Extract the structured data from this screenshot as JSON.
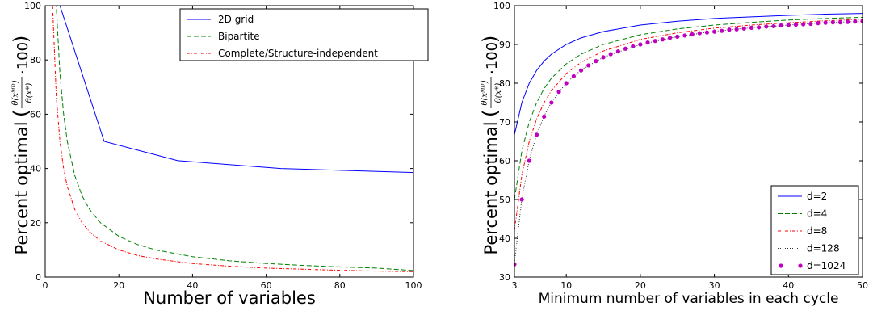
{
  "chart_data": [
    {
      "type": "line",
      "xlabel": "Number of variables",
      "ylabel": "Percent optimal",
      "ylabel_expr": {
        "num": "θ(x^{MD})",
        "den": "θ(x*)",
        "suffix": "·100"
      },
      "xlim": [
        0,
        100
      ],
      "ylim": [
        0,
        100
      ],
      "xticks": [
        0,
        20,
        40,
        60,
        80,
        100
      ],
      "yticks": [
        0,
        20,
        40,
        60,
        80,
        100
      ],
      "legend_position": "top-right",
      "series": [
        {
          "name": "2D grid",
          "color": "#0000ff",
          "dash": "solid",
          "x": [
            4,
            16,
            36,
            64,
            100
          ],
          "y": [
            100,
            50,
            42.9,
            40,
            38.5
          ]
        },
        {
          "name": "Bipartite",
          "color": "#008000",
          "dash": "dashed",
          "x": [
            2,
            3,
            4,
            5,
            6,
            8,
            10,
            12,
            15,
            20,
            25,
            30,
            40,
            50,
            60,
            70,
            80,
            90,
            100
          ],
          "y": [
            100,
            100,
            75,
            60,
            50,
            37.5,
            30,
            25,
            20,
            15,
            12,
            10,
            7.5,
            6,
            5,
            4.3,
            3.75,
            3.3,
            2.4
          ]
        },
        {
          "name": "Complete/Structure-independent",
          "color": "#ff0000",
          "dash": "dashdot",
          "x": [
            2,
            3,
            4,
            5,
            6,
            8,
            10,
            12,
            15,
            20,
            25,
            30,
            40,
            50,
            60,
            70,
            80,
            90,
            100
          ],
          "y": [
            100,
            66.7,
            50,
            40,
            33.3,
            25,
            20,
            16.7,
            13.3,
            10,
            8,
            6.7,
            5,
            4,
            3.3,
            2.9,
            2.5,
            2.2,
            2
          ]
        }
      ]
    },
    {
      "type": "line",
      "xlabel": "Minimum number of variables in each cycle",
      "ylabel": "Percent optimal",
      "ylabel_expr": {
        "num": "θ(x^{MD})",
        "den": "θ(x*)",
        "suffix": "·100"
      },
      "xlim": [
        3,
        50
      ],
      "ylim": [
        30,
        100
      ],
      "xticks": [
        3,
        10,
        20,
        30,
        40,
        50
      ],
      "yticks": [
        30,
        40,
        50,
        60,
        70,
        80,
        90,
        100
      ],
      "legend_position": "bottom-right",
      "series": [
        {
          "name": "d=2",
          "color": "#0000ff",
          "dash": "solid",
          "x": [
            3,
            4,
            5,
            6,
            7,
            8,
            10,
            12,
            15,
            20,
            25,
            30,
            35,
            40,
            45,
            50
          ],
          "y": [
            66.7,
            75,
            80,
            83.3,
            85.7,
            87.5,
            90,
            91.7,
            93.3,
            95,
            96,
            96.7,
            97.1,
            97.5,
            97.8,
            98
          ]
        },
        {
          "name": "d=4",
          "color": "#008000",
          "dash": "dashed",
          "x": [
            3,
            4,
            5,
            6,
            7,
            8,
            10,
            12,
            15,
            20,
            25,
            30,
            35,
            40,
            45,
            50
          ],
          "y": [
            50,
            62.5,
            70,
            75,
            78.6,
            81.3,
            85,
            87.5,
            90,
            92.5,
            94,
            95,
            95.7,
            96.3,
            96.7,
            97
          ]
        },
        {
          "name": "d=8",
          "color": "#ff0000",
          "dash": "dashdot",
          "x": [
            3,
            4,
            5,
            6,
            7,
            8,
            10,
            12,
            15,
            20,
            25,
            30,
            35,
            40,
            45,
            50
          ],
          "y": [
            42,
            56.3,
            65,
            70.8,
            75,
            78.1,
            82.5,
            85.4,
            88.3,
            91.3,
            93,
            94.2,
            95,
            95.6,
            96.1,
            96.5
          ]
        },
        {
          "name": "d=128",
          "color": "#333333",
          "dash": "dotted",
          "x": [
            3,
            4,
            5,
            6,
            7,
            8,
            10,
            12,
            15,
            20,
            25,
            30,
            35,
            40,
            45,
            50
          ],
          "y": [
            33.6,
            50.2,
            60.2,
            66.8,
            71.5,
            75.1,
            80.1,
            83.4,
            86.7,
            90,
            92,
            93.4,
            94.3,
            95,
            95.6,
            96
          ]
        },
        {
          "name": "d=1024",
          "color": "#bf00bf",
          "dash": "markers",
          "x": [
            3,
            4,
            5,
            6,
            7,
            8,
            9,
            10,
            11,
            12,
            13,
            14,
            15,
            16,
            17,
            18,
            19,
            20,
            21,
            22,
            23,
            24,
            25,
            26,
            27,
            28,
            29,
            30,
            31,
            32,
            33,
            34,
            35,
            36,
            37,
            38,
            39,
            40,
            41,
            42,
            43,
            44,
            45,
            46,
            47,
            48,
            49,
            50
          ],
          "y": [
            33.3,
            50,
            60,
            66.7,
            71.4,
            75,
            77.8,
            80,
            81.8,
            83.3,
            84.6,
            85.7,
            86.7,
            87.5,
            88.2,
            88.9,
            89.5,
            90,
            90.5,
            90.9,
            91.3,
            91.7,
            92,
            92.3,
            92.6,
            92.9,
            93.1,
            93.3,
            93.5,
            93.8,
            93.9,
            94.1,
            94.3,
            94.4,
            94.6,
            94.7,
            94.9,
            95,
            95.1,
            95.2,
            95.3,
            95.5,
            95.6,
            95.7,
            95.7,
            95.8,
            95.9,
            96
          ]
        }
      ]
    }
  ]
}
